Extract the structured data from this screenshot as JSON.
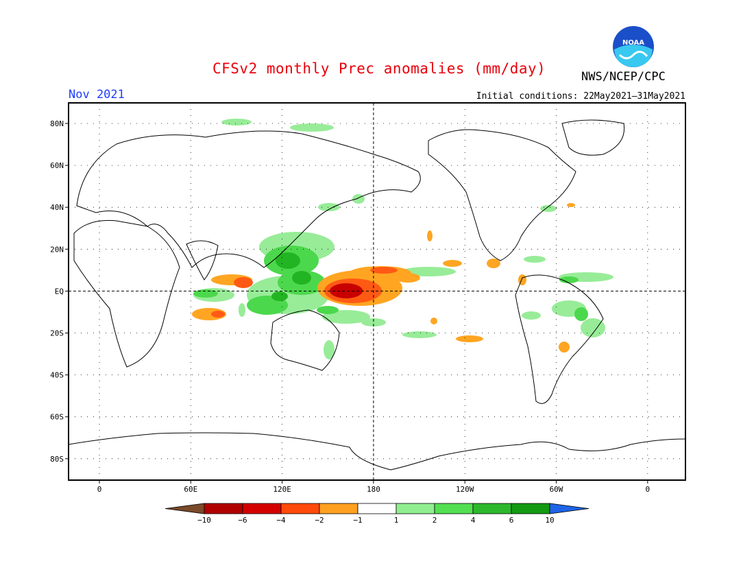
{
  "title": "CFSv2 monthly Prec anomalies (mm/day)",
  "agency": "NWS/NCEP/CPC",
  "logo_text": "NOAA",
  "valid_month": "Nov 2021",
  "initial_conditions": "Initial conditions: 22May2021–31May2021",
  "lat_labels": [
    "80N",
    "60N",
    "40N",
    "20N",
    "EQ",
    "20S",
    "40S",
    "60S",
    "80S"
  ],
  "lon_labels": [
    "0",
    "60E",
    "120E",
    "180",
    "120W",
    "60W",
    "0"
  ],
  "colorbar": {
    "labels": [
      "−10",
      "−6",
      "−4",
      "−2",
      "−1",
      "1",
      "2",
      "4",
      "6",
      "10"
    ],
    "colors": [
      "#7a4a2a",
      "#b00000",
      "#d40000",
      "#ff4a0a",
      "#ffa020",
      "#ffffff",
      "#90ee90",
      "#52e052",
      "#2cb82c",
      "#139a13",
      "#1e64e6"
    ]
  },
  "colors": {
    "strong_dry": "#c80000",
    "dry": "#ff5a14",
    "light_dry": "#ffa522",
    "light_wet": "#98ec98",
    "wet": "#4cd84c",
    "strong_wet": "#22b422"
  }
}
